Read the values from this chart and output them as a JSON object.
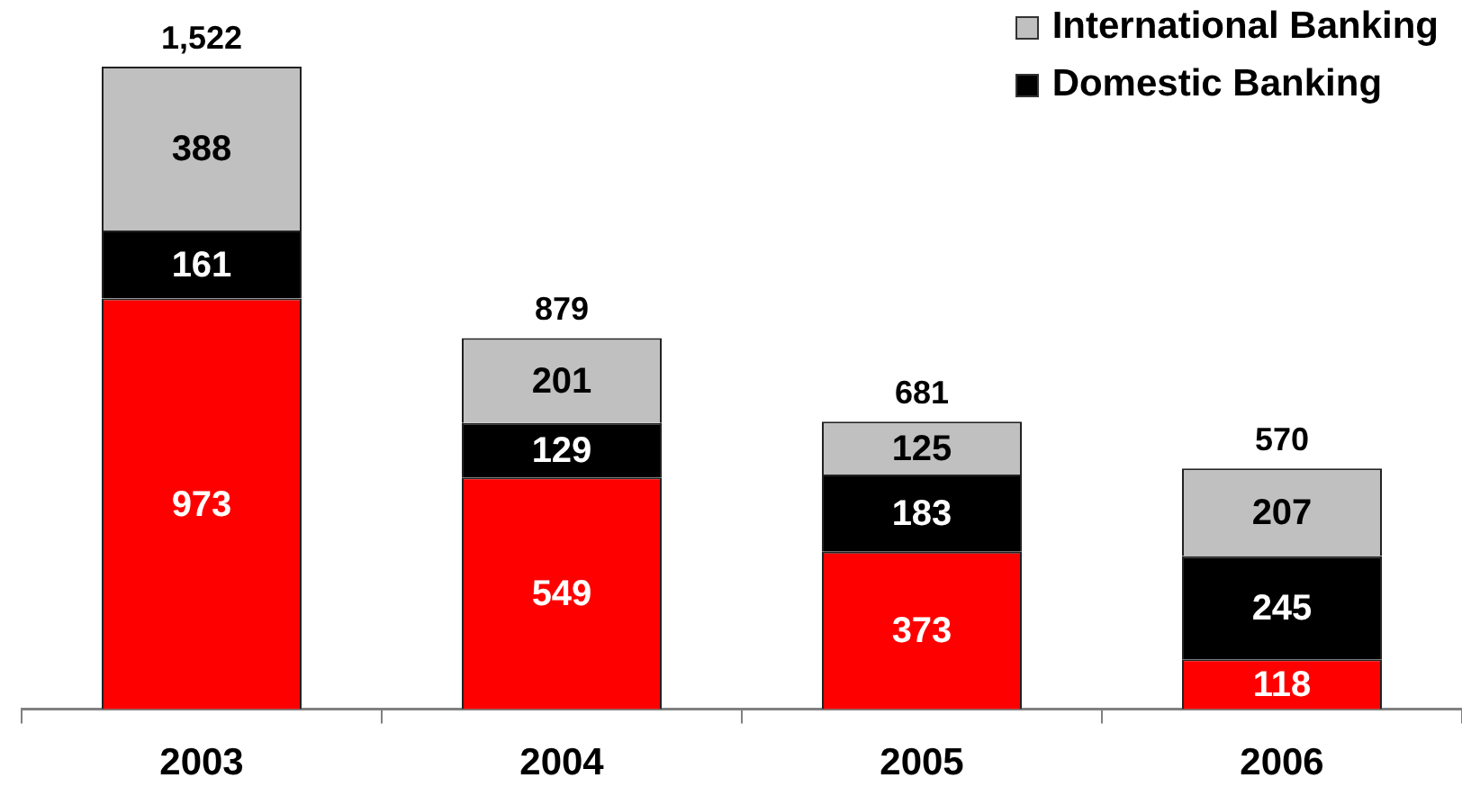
{
  "chart_data": {
    "type": "bar",
    "categories": [
      "2003",
      "2004",
      "2005",
      "2006"
    ],
    "stacked": true,
    "series": [
      {
        "color": "#ff0000",
        "values": [
          973,
          549,
          373,
          118
        ]
      },
      {
        "name": "Domestic Banking",
        "color": "#000000",
        "values": [
          161,
          129,
          183,
          245
        ]
      },
      {
        "name": "International Banking",
        "color": "#c0c0c0",
        "values": [
          388,
          201,
          125,
          207
        ]
      }
    ],
    "data_labels": true,
    "totals": [
      "1,522",
      "879",
      "681",
      "570"
    ],
    "legend": "top right"
  }
}
